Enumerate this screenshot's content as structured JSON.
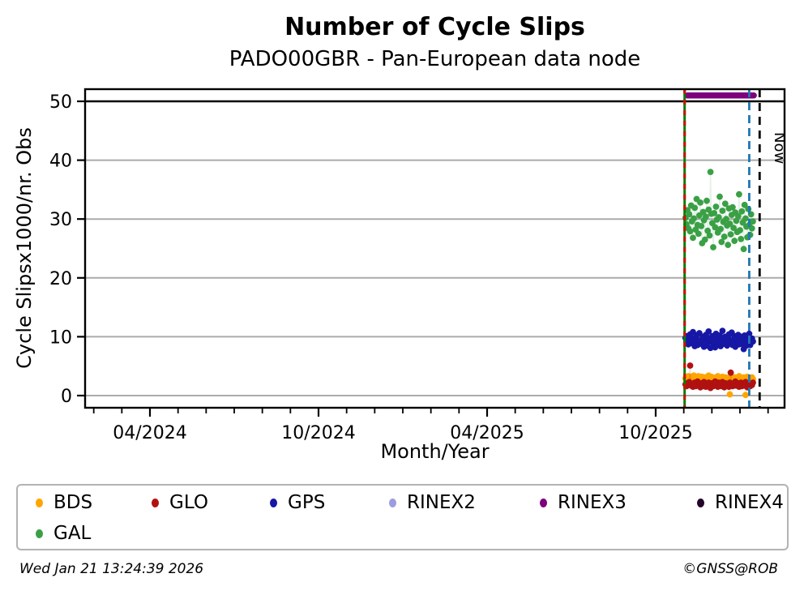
{
  "chart_data": {
    "type": "scatter",
    "title": "Number of Cycle Slips",
    "subtitle": "PADO00GBR - Pan-European data node",
    "xlabel": "Month/Year",
    "ylabel": "Cycle Slipsx1000/nr. Obs",
    "ylim": [
      -2,
      52
    ],
    "grid": true,
    "y_ticks": [
      0,
      10,
      20,
      30,
      40,
      50
    ],
    "threshold_line_y": 50,
    "x_ticks": [
      {
        "label": "04/2024",
        "m": 0
      },
      {
        "label": "10/2024",
        "m": 6
      },
      {
        "label": "04/2025",
        "m": 12
      },
      {
        "label": "10/2025",
        "m": 18
      }
    ],
    "x_minor_month_range": [
      -2,
      22
    ],
    "markers": [
      {
        "name": "data-start-line",
        "style": "green-solid-red-dashed",
        "m": 19.03,
        "label": ""
      },
      {
        "name": "latest-data-line",
        "style": "blue-dashed",
        "m": 21.33,
        "label": ""
      },
      {
        "name": "now-line",
        "style": "black-dashed",
        "m": 21.7,
        "label": "Now"
      }
    ],
    "rinex3_line": {
      "name": "RINEX3",
      "color": "#7D007D",
      "value": 51,
      "day_start": 3,
      "day_end": 75
    },
    "series": [
      {
        "name": "GAL",
        "color": "#3AA045",
        "values": [
          30.2,
          29.1,
          31.5,
          28.4,
          30.8,
          27.9,
          32.3,
          29.6,
          26.8,
          30.1,
          31.9,
          28.2,
          33.4,
          29.0,
          27.5,
          30.6,
          32.8,
          28.8,
          25.9,
          31.2,
          29.8,
          26.5,
          30.4,
          33.1,
          28.0,
          31.6,
          27.2,
          38.0,
          30.9,
          29.3,
          25.2,
          31.0,
          28.6,
          32.1,
          29.9,
          27.7,
          30.3,
          33.8,
          28.3,
          26.1,
          31.4,
          29.5,
          27.0,
          32.6,
          30.0,
          28.9,
          25.6,
          31.8,
          29.2,
          27.4,
          30.7,
          32.0,
          28.5,
          26.3,
          31.1,
          29.7,
          27.8,
          30.5,
          34.2,
          28.1,
          26.6,
          31.3,
          29.4,
          24.9,
          32.4,
          30.1,
          28.7,
          26.9,
          31.7,
          29.0,
          27.3,
          30.8,
          28.4,
          29.6
        ]
      },
      {
        "name": "GPS",
        "color": "#1717A6",
        "values": [
          9.8,
          9.2,
          10.1,
          8.7,
          9.5,
          10.4,
          8.9,
          9.7,
          10.8,
          9.0,
          8.4,
          9.9,
          10.2,
          8.6,
          9.3,
          10.6,
          9.1,
          8.8,
          9.6,
          10.0,
          8.3,
          9.4,
          10.3,
          8.5,
          9.8,
          10.9,
          9.2,
          8.1,
          9.5,
          10.1,
          8.9,
          9.7,
          8.2,
          10.5,
          9.0,
          8.7,
          9.9,
          10.2,
          8.4,
          9.3,
          11.0,
          9.6,
          8.8,
          10.0,
          9.1,
          8.5,
          9.8,
          10.4,
          8.9,
          9.2,
          10.7,
          8.6,
          9.5,
          10.1,
          8.3,
          9.7,
          9.0,
          10.3,
          8.7,
          9.4,
          10.0,
          8.8,
          9.6,
          7.9,
          10.2,
          9.1,
          8.5,
          9.9,
          9.3,
          10.5,
          8.6,
          9.0,
          9.7,
          9.2
        ]
      },
      {
        "name": "BDS",
        "color": "#FFA500",
        "values": [
          2.9,
          3.1,
          2.6,
          3.3,
          2.8,
          3.0,
          2.5,
          3.2,
          2.7,
          3.4,
          2.9,
          2.4,
          3.1,
          2.8,
          3.3,
          2.6,
          3.0,
          2.7,
          3.2,
          2.5,
          2.9,
          3.1,
          2.8,
          2.3,
          3.0,
          3.4,
          2.6,
          2.9,
          3.2,
          2.7,
          3.0,
          2.4,
          2.8,
          3.1,
          2.6,
          3.3,
          2.9,
          2.5,
          3.0,
          2.8,
          3.2,
          2.7,
          2.9,
          3.1,
          2.4,
          2.8,
          3.0,
          2.6,
          0.2,
          2.9,
          3.2,
          2.5,
          2.8,
          3.1,
          2.7,
          3.0,
          2.9,
          2.6,
          3.3,
          2.8,
          2.4,
          3.0,
          2.7,
          3.1,
          2.9,
          0.1,
          2.8,
          3.2,
          2.6,
          3.0,
          2.9,
          2.7,
          3.1,
          2.8
        ]
      },
      {
        "name": "GLO",
        "color": "#B01111",
        "values": [
          1.9,
          1.6,
          2.1,
          1.8,
          2.3,
          5.1,
          1.7,
          2.0,
          1.5,
          1.9,
          2.2,
          1.6,
          1.8,
          2.4,
          1.7,
          2.0,
          1.4,
          1.9,
          2.1,
          1.6,
          2.3,
          1.8,
          1.5,
          2.0,
          1.7,
          2.2,
          1.9,
          1.3,
          1.8,
          2.1,
          1.6,
          2.0,
          2.4,
          1.7,
          1.9,
          1.5,
          2.2,
          1.8,
          2.0,
          1.6,
          2.3,
          1.9,
          1.4,
          2.1,
          1.7,
          2.0,
          1.8,
          1.5,
          2.2,
          3.9,
          1.9,
          1.6,
          2.0,
          1.8,
          2.4,
          1.7,
          1.9,
          2.1,
          1.5,
          1.8,
          2.2,
          1.6,
          2.0,
          1.9,
          1.7,
          2.3,
          1.8,
          1.4,
          2.1,
          1.9,
          1.6,
          2.0,
          1.8,
          2.2
        ]
      }
    ]
  },
  "legend": {
    "items": [
      {
        "label": "BDS",
        "color": "#FFA500"
      },
      {
        "label": "GLO",
        "color": "#B01111"
      },
      {
        "label": "GPS",
        "color": "#1717A6"
      },
      {
        "label": "RINEX2",
        "color": "#9C9CDE"
      },
      {
        "label": "RINEX3",
        "color": "#7D007D"
      },
      {
        "label": "RINEX4",
        "color": "#24062B"
      },
      {
        "label": "GAL",
        "color": "#3AA045"
      }
    ]
  },
  "footer": {
    "timestamp": "Wed Jan 21 13:24:39 2026",
    "credit": "©GNSS@ROB"
  },
  "colors": {
    "grid": "#ABABAB",
    "frame": "#000000",
    "event_line_green": "#0A7A0A",
    "event_line_red": "#CC1100",
    "latest_line_blue": "#1F77B4",
    "now_line_black": "#000000"
  }
}
